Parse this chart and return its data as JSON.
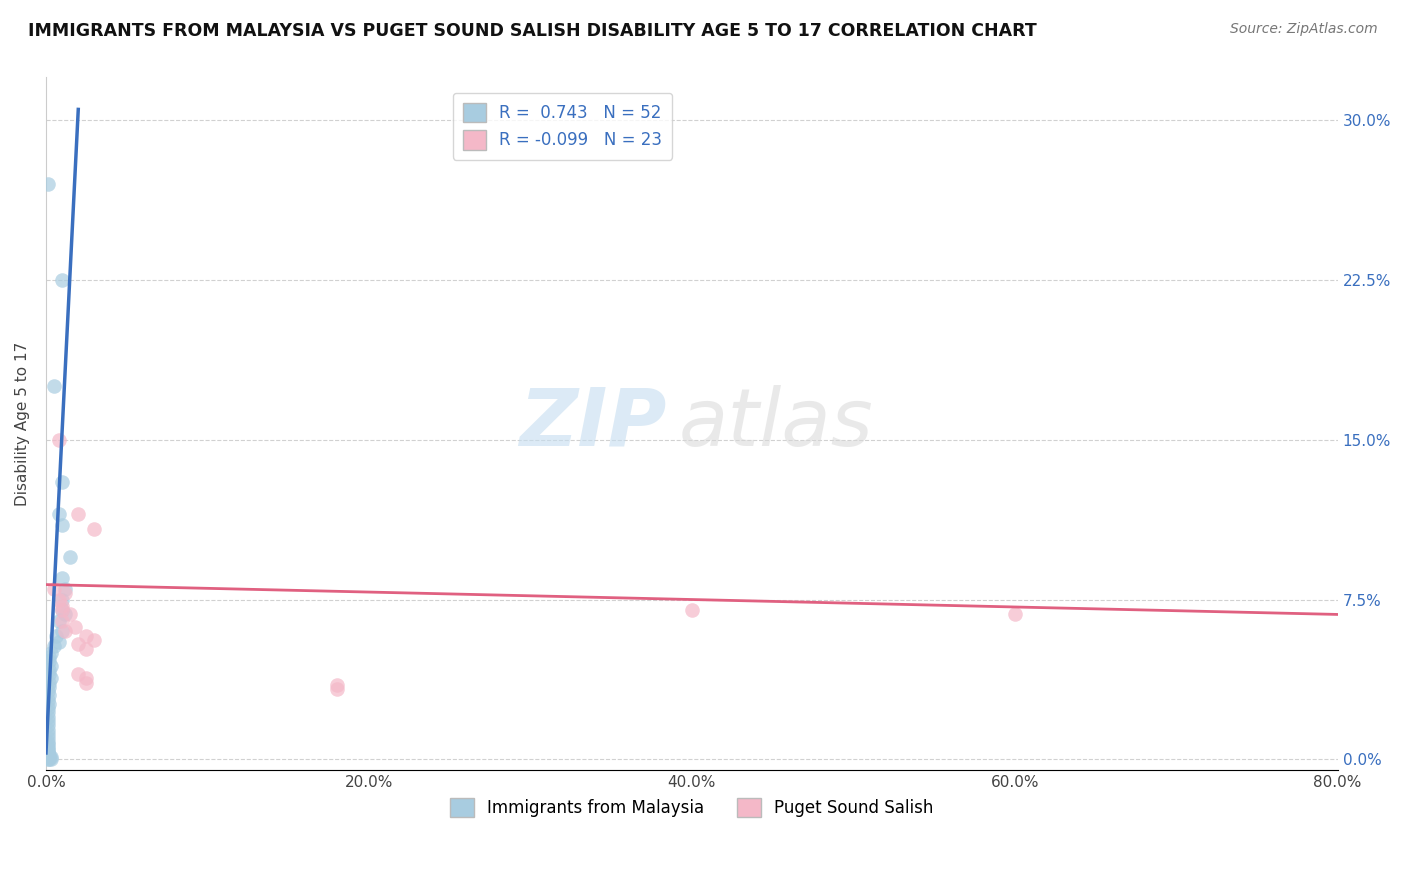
{
  "title": "IMMIGRANTS FROM MALAYSIA VS PUGET SOUND SALISH DISABILITY AGE 5 TO 17 CORRELATION CHART",
  "source": "Source: ZipAtlas.com",
  "ylabel": "Disability Age 5 to 17",
  "xlim": [
    0.0,
    0.8
  ],
  "ylim": [
    -0.005,
    0.32
  ],
  "xticks": [
    0.0,
    0.2,
    0.4,
    0.6,
    0.8
  ],
  "xtick_labels": [
    "0.0%",
    "20.0%",
    "40.0%",
    "60.0%",
    "80.0%"
  ],
  "yticks": [
    0.0,
    0.075,
    0.15,
    0.225,
    0.3
  ],
  "ytick_labels": [
    "0.0%",
    "7.5%",
    "15.0%",
    "22.5%",
    "30.0%"
  ],
  "blue_R": 0.743,
  "blue_N": 52,
  "pink_R": -0.099,
  "pink_N": 23,
  "blue_color": "#a8cce0",
  "pink_color": "#f4b8c8",
  "blue_line_color": "#3a6fbf",
  "pink_line_color": "#e06080",
  "blue_scatter": [
    [
      0.001,
      0.27
    ],
    [
      0.01,
      0.225
    ],
    [
      0.005,
      0.175
    ],
    [
      0.01,
      0.13
    ],
    [
      0.008,
      0.115
    ],
    [
      0.01,
      0.11
    ],
    [
      0.015,
      0.095
    ],
    [
      0.01,
      0.085
    ],
    [
      0.012,
      0.08
    ],
    [
      0.01,
      0.075
    ],
    [
      0.01,
      0.07
    ],
    [
      0.012,
      0.068
    ],
    [
      0.008,
      0.065
    ],
    [
      0.01,
      0.06
    ],
    [
      0.006,
      0.058
    ],
    [
      0.008,
      0.055
    ],
    [
      0.005,
      0.053
    ],
    [
      0.003,
      0.05
    ],
    [
      0.002,
      0.048
    ],
    [
      0.002,
      0.046
    ],
    [
      0.003,
      0.044
    ],
    [
      0.002,
      0.042
    ],
    [
      0.002,
      0.04
    ],
    [
      0.003,
      0.038
    ],
    [
      0.002,
      0.036
    ],
    [
      0.002,
      0.034
    ],
    [
      0.001,
      0.032
    ],
    [
      0.002,
      0.03
    ],
    [
      0.001,
      0.028
    ],
    [
      0.002,
      0.026
    ],
    [
      0.001,
      0.024
    ],
    [
      0.001,
      0.022
    ],
    [
      0.001,
      0.02
    ],
    [
      0.001,
      0.018
    ],
    [
      0.001,
      0.016
    ],
    [
      0.001,
      0.014
    ],
    [
      0.001,
      0.012
    ],
    [
      0.001,
      0.01
    ],
    [
      0.001,
      0.008
    ],
    [
      0.001,
      0.007
    ],
    [
      0.001,
      0.006
    ],
    [
      0.001,
      0.005
    ],
    [
      0.001,
      0.004
    ],
    [
      0.001,
      0.003
    ],
    [
      0.001,
      0.002
    ],
    [
      0.001,
      0.001
    ],
    [
      0.001,
      0.0
    ],
    [
      0.002,
      0.001
    ],
    [
      0.002,
      0.0
    ],
    [
      0.003,
      0.001
    ],
    [
      0.003,
      0.0
    ],
    [
      0.002,
      0.002
    ]
  ],
  "pink_scatter": [
    [
      0.008,
      0.15
    ],
    [
      0.02,
      0.115
    ],
    [
      0.03,
      0.108
    ],
    [
      0.005,
      0.08
    ],
    [
      0.012,
      0.078
    ],
    [
      0.008,
      0.075
    ],
    [
      0.01,
      0.072
    ],
    [
      0.01,
      0.07
    ],
    [
      0.015,
      0.068
    ],
    [
      0.01,
      0.065
    ],
    [
      0.018,
      0.062
    ],
    [
      0.012,
      0.06
    ],
    [
      0.025,
      0.058
    ],
    [
      0.03,
      0.056
    ],
    [
      0.02,
      0.054
    ],
    [
      0.025,
      0.052
    ],
    [
      0.4,
      0.07
    ],
    [
      0.6,
      0.068
    ],
    [
      0.02,
      0.04
    ],
    [
      0.025,
      0.038
    ],
    [
      0.025,
      0.036
    ],
    [
      0.18,
      0.035
    ],
    [
      0.18,
      0.033
    ]
  ],
  "watermark_zip": "ZIP",
  "watermark_atlas": "atlas",
  "legend_blue_label": "Immigrants from Malaysia",
  "legend_pink_label": "Puget Sound Salish",
  "background_color": "#ffffff",
  "grid_color": "#cccccc",
  "blue_trend_x": [
    0.0,
    0.02
  ],
  "blue_trend_y": [
    0.003,
    0.305
  ],
  "pink_trend_x": [
    0.0,
    0.8
  ],
  "pink_trend_y": [
    0.082,
    0.068
  ]
}
